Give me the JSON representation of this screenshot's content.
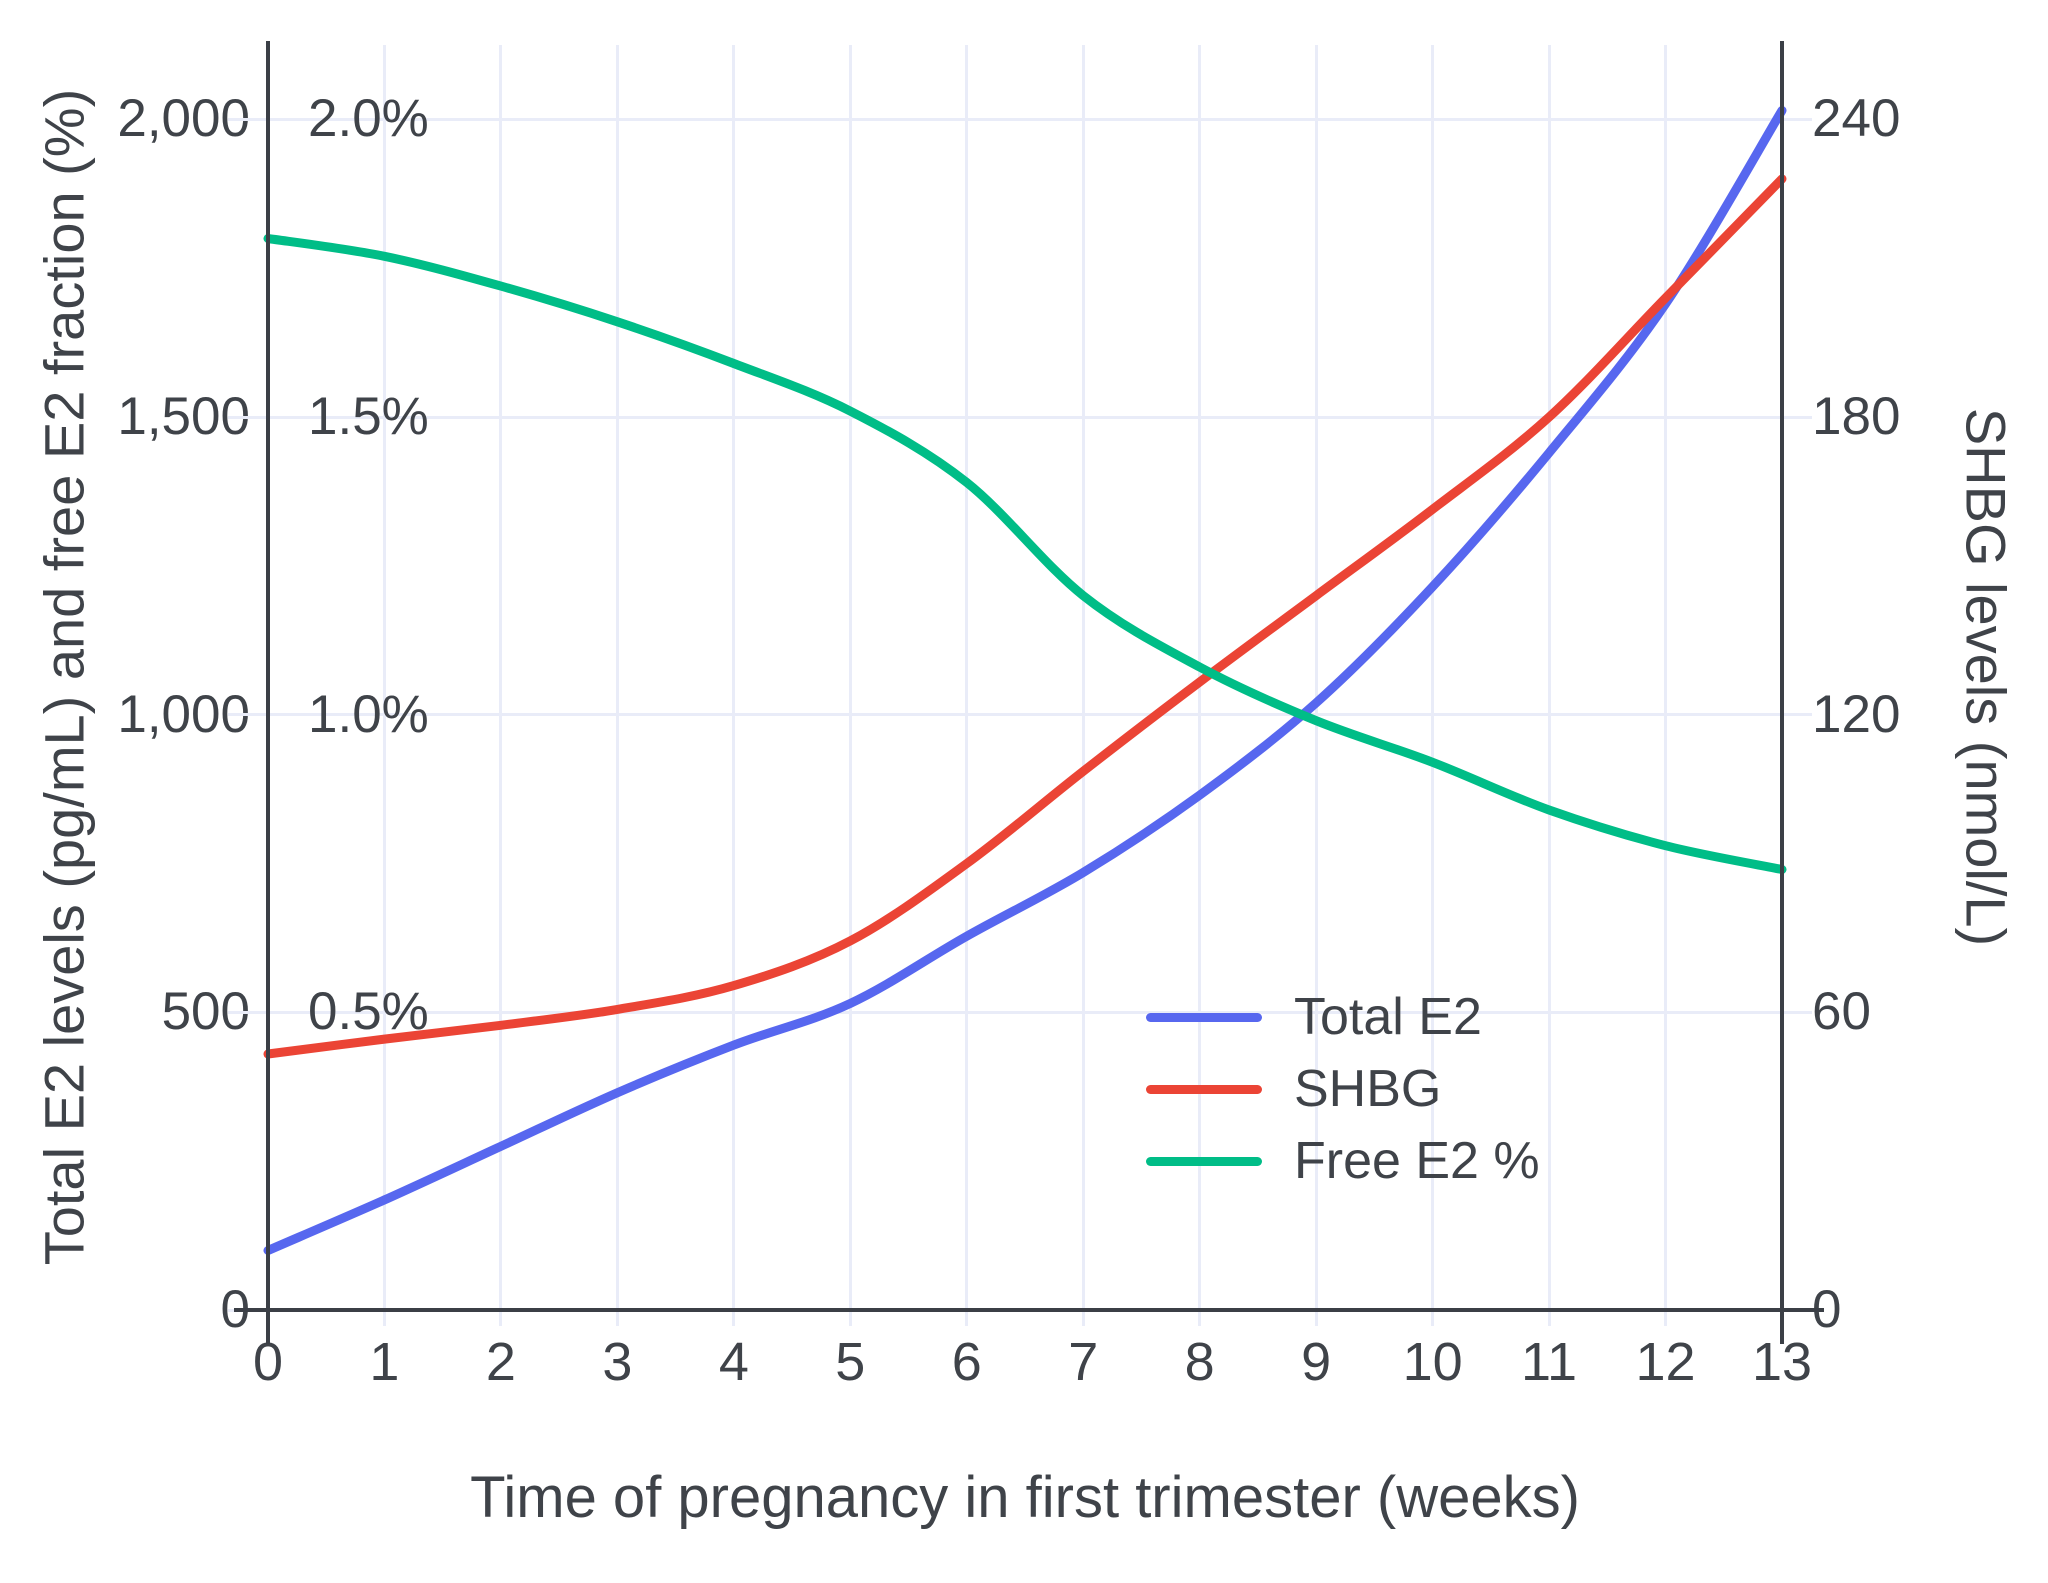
{
  "chart_data": {
    "type": "line",
    "title": "",
    "xlabel": "Time of pregnancy in first trimester (weeks)",
    "ylabel_left": "Total E2 levels (pg/mL) and free E2 fraction (%)",
    "ylabel_right": "SHBG levels (nmol/L)",
    "x_weeks": [
      0,
      1,
      2,
      3,
      4,
      5,
      6,
      7,
      8,
      9,
      10,
      11,
      12,
      13
    ],
    "x_tick_labels": [
      "0",
      "1",
      "2",
      "3",
      "4",
      "5",
      "6",
      "7",
      "8",
      "9",
      "10",
      "11",
      "12",
      "13"
    ],
    "left_axis": {
      "tick_values": [
        0,
        500,
        1000,
        1500,
        2000
      ],
      "tick_labels": [
        "0",
        "500",
        "1,000",
        "1,500",
        "2,000"
      ],
      "percent_tick_values": [
        500,
        1000,
        1500,
        2000
      ],
      "percent_tick_labels": [
        "0.5%",
        "1.0%",
        "1.5%",
        "2.0%"
      ],
      "range": [
        0,
        2125
      ]
    },
    "right_axis": {
      "tick_values": [
        0,
        60,
        120,
        180,
        240
      ],
      "tick_labels": [
        "0",
        "60",
        "120",
        "180",
        "240"
      ],
      "range": [
        0,
        255
      ]
    },
    "grid": true,
    "legend_position": "inside-right-middle",
    "series": [
      {
        "name": "Total E2",
        "axis": "left",
        "unit": "pg/mL",
        "color": "#5767ef",
        "values": [
          100,
          185,
          275,
          365,
          445,
          515,
          628,
          735,
          865,
          1020,
          1215,
          1440,
          1690,
          2015
        ]
      },
      {
        "name": "SHBG",
        "axis": "right",
        "unit": "nmol/L",
        "color": "#eb4435",
        "values": [
          51.6,
          54.6,
          57.4,
          60.6,
          65.4,
          74.4,
          90,
          108.6,
          126.6,
          144,
          161.4,
          180,
          204,
          228
        ]
      },
      {
        "name": "Free E2 %",
        "axis": "left_percent",
        "unit": "%",
        "color": "#00bd87",
        "values": [
          1.8,
          1.77,
          1.72,
          1.66,
          1.59,
          1.51,
          1.39,
          1.2,
          1.08,
          0.99,
          0.92,
          0.84,
          0.78,
          0.74
        ]
      }
    ],
    "colors": {
      "grid": "#e9ecf8",
      "axis": "#3b3f46",
      "text": "#3f4349",
      "background": "#ffffff"
    }
  }
}
